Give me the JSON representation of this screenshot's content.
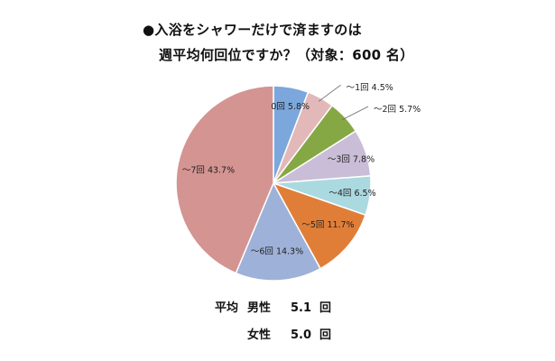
{
  "chart_data": {
    "type": "pie",
    "title_line1": "●入浴をシャワーだけで済ますのは",
    "title_line2": "週平均何回位ですか？（対象：600 名）",
    "slices": [
      {
        "label": "0回",
        "value": 5.8,
        "text": "5.8%",
        "color": "#7ba7dc"
      },
      {
        "label": "～1回",
        "value": 4.5,
        "text": "4.5%",
        "color": "#e3b8b8"
      },
      {
        "label": "～2回",
        "value": 5.7,
        "text": "5.7%",
        "color": "#85a845"
      },
      {
        "label": "～3回",
        "value": 7.8,
        "text": "7.8%",
        "color": "#c9bdd8"
      },
      {
        "label": "～4回",
        "value": 6.5,
        "text": "6.5%",
        "color": "#abd9e0"
      },
      {
        "label": "～5回",
        "value": 11.7,
        "text": "11.7%",
        "color": "#e07e38"
      },
      {
        "label": "～6回",
        "value": 14.3,
        "text": "14.3%",
        "color": "#9eb1d8"
      },
      {
        "label": "～7回",
        "value": 43.7,
        "text": "43.7%",
        "color": "#d49492"
      }
    ],
    "start_angle_deg": 0,
    "direction": "clockwise"
  },
  "averages": {
    "heading": "平均",
    "rows": [
      {
        "group": "男性",
        "value": "5.1",
        "unit": "回"
      },
      {
        "group": "女性",
        "value": "5.0",
        "unit": "回"
      }
    ]
  }
}
